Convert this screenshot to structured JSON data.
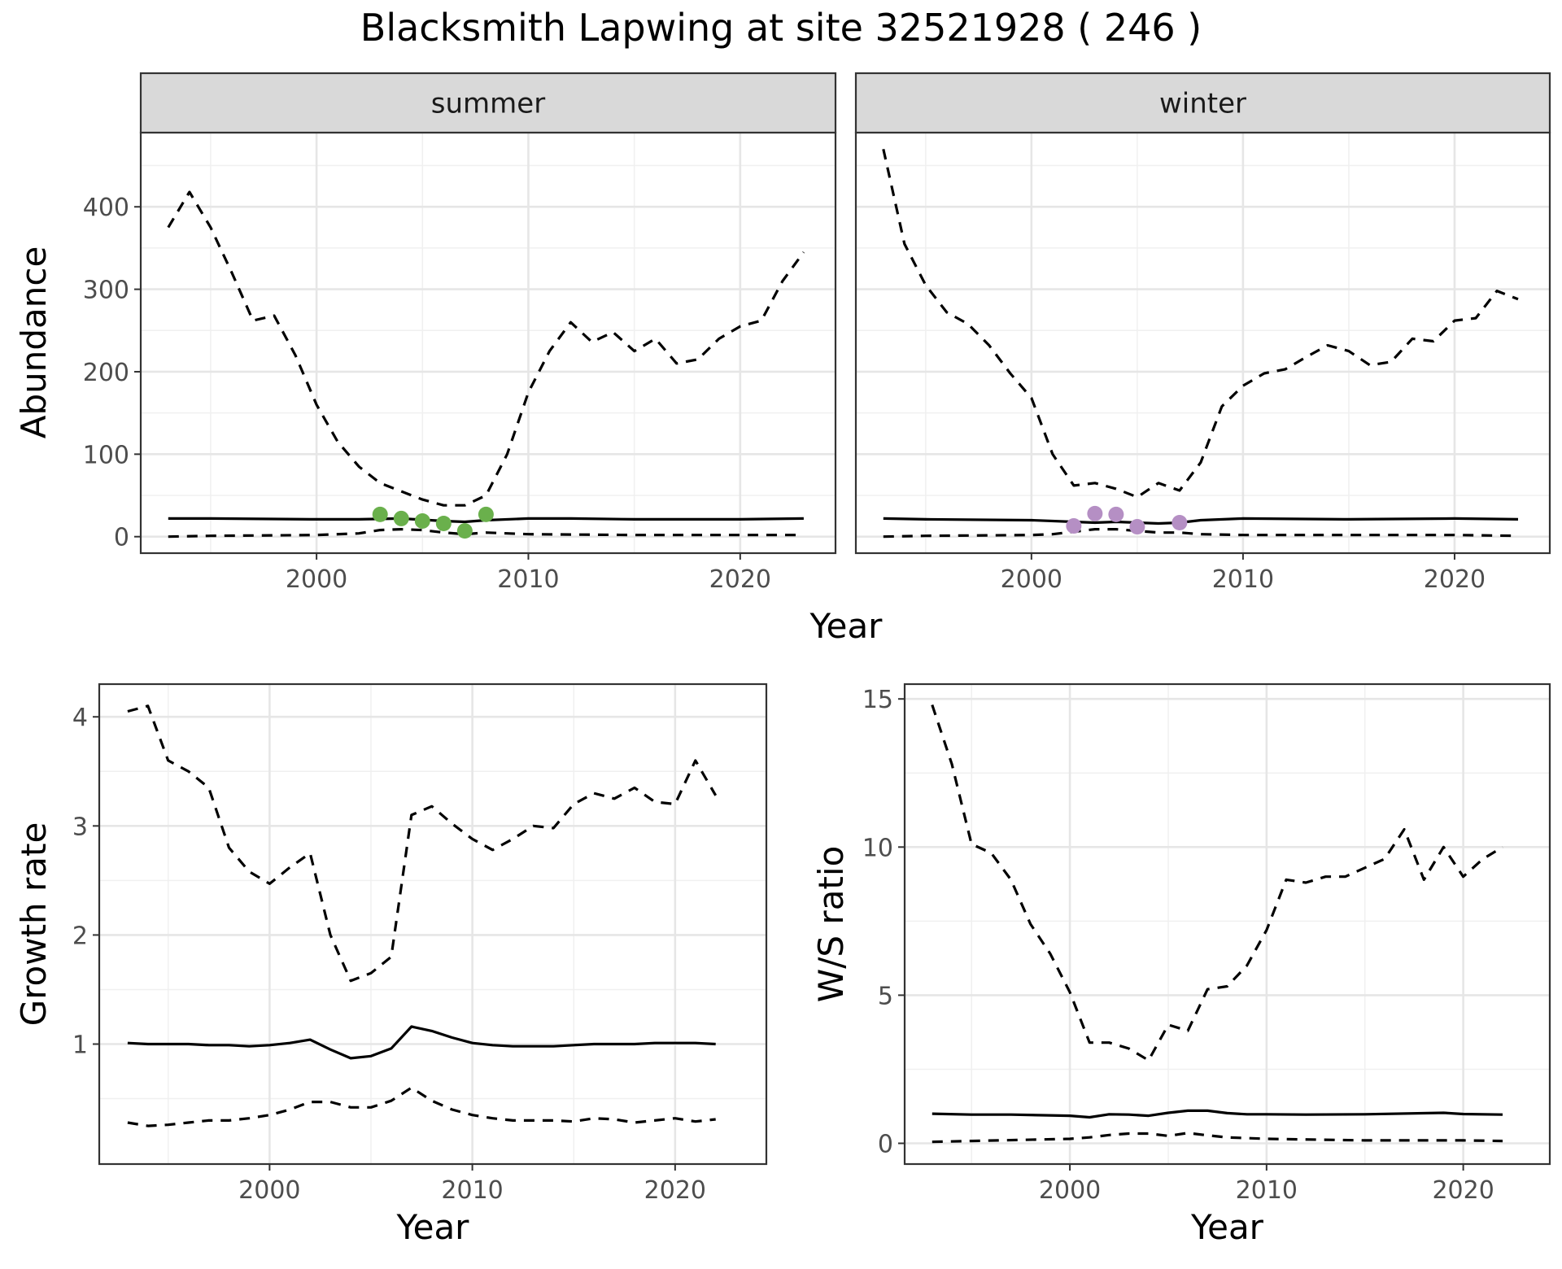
{
  "title": "Blacksmith Lapwing at site 32521928 ( 246 )",
  "chart_data": [
    {
      "type": "line",
      "facet": "summer",
      "xlabel": "Year",
      "ylabel": "Abundance",
      "xlim": [
        1991.7,
        2024.5
      ],
      "ylim": [
        -20,
        490
      ],
      "xticks": [
        2000,
        2010,
        2020
      ],
      "yticks": [
        0,
        100,
        200,
        300,
        400
      ],
      "grid": true,
      "series": [
        {
          "role": "estimate",
          "linestyle": "solid",
          "x": [
            1993,
            1995,
            2000,
            2002,
            2004,
            2006,
            2007,
            2008,
            2010,
            2012,
            2015,
            2020,
            2023
          ],
          "y": [
            22,
            22,
            21,
            21,
            22,
            19,
            18,
            20,
            22,
            22,
            21,
            21,
            22
          ]
        },
        {
          "role": "upper",
          "linestyle": "dashed",
          "x": [
            1993,
            1994,
            1995,
            1996,
            1997,
            1998,
            1999,
            2000,
            2001,
            2002,
            2003,
            2004,
            2005,
            2006,
            2007,
            2008,
            2009,
            2010,
            2011,
            2012,
            2013,
            2014,
            2015,
            2016,
            2017,
            2018,
            2019,
            2020,
            2021,
            2022,
            2023
          ],
          "y": [
            375,
            418,
            375,
            320,
            262,
            268,
            220,
            160,
            115,
            85,
            65,
            55,
            45,
            38,
            38,
            50,
            100,
            175,
            225,
            260,
            236,
            248,
            225,
            240,
            210,
            215,
            240,
            255,
            262,
            310,
            345
          ]
        },
        {
          "role": "lower",
          "linestyle": "dashed",
          "x": [
            1993,
            1995,
            2000,
            2002,
            2003,
            2004,
            2005,
            2006,
            2007,
            2008,
            2010,
            2015,
            2020,
            2023
          ],
          "y": [
            0,
            1,
            2,
            4,
            8,
            9,
            8,
            5,
            3,
            5,
            3,
            2,
            2,
            2
          ]
        },
        {
          "role": "observed",
          "color": "#6ab04c",
          "x": [
            2003,
            2004,
            2005,
            2006,
            2007,
            2008
          ],
          "y": [
            27,
            22,
            19,
            16,
            7,
            27
          ]
        }
      ]
    },
    {
      "type": "line",
      "facet": "winter",
      "xlabel": "Year",
      "ylabel": "",
      "xlim": [
        1991.7,
        2024.5
      ],
      "ylim": [
        -20,
        490
      ],
      "xticks": [
        2000,
        2010,
        2020
      ],
      "yticks": [
        0,
        100,
        200,
        300,
        400
      ],
      "grid": true,
      "series": [
        {
          "role": "estimate",
          "linestyle": "solid",
          "x": [
            1993,
            1995,
            2000,
            2002,
            2003,
            2004,
            2005,
            2006,
            2007,
            2008,
            2010,
            2015,
            2020,
            2023
          ],
          "y": [
            22,
            21,
            20,
            18,
            17,
            18,
            17,
            16,
            17,
            20,
            22,
            21,
            22,
            21
          ]
        },
        {
          "role": "upper",
          "linestyle": "dashed",
          "x": [
            1993,
            1994,
            1995,
            1996,
            1997,
            1998,
            1999,
            2000,
            2001,
            2002,
            2003,
            2004,
            2005,
            2006,
            2007,
            2008,
            2009,
            2010,
            2011,
            2012,
            2013,
            2014,
            2015,
            2016,
            2017,
            2018,
            2019,
            2020,
            2021,
            2022,
            2023
          ],
          "y": [
            470,
            355,
            305,
            272,
            258,
            232,
            198,
            168,
            100,
            62,
            65,
            58,
            48,
            65,
            56,
            90,
            158,
            183,
            198,
            203,
            218,
            232,
            225,
            208,
            212,
            240,
            237,
            262,
            265,
            298,
            288
          ]
        },
        {
          "role": "lower",
          "linestyle": "dashed",
          "x": [
            1993,
            1995,
            2000,
            2001,
            2002,
            2003,
            2004,
            2005,
            2006,
            2007,
            2008,
            2010,
            2015,
            2020,
            2023
          ],
          "y": [
            0,
            1,
            2,
            3,
            6,
            9,
            9,
            7,
            5,
            5,
            3,
            2,
            2,
            2,
            1
          ]
        },
        {
          "role": "observed",
          "color": "#b58fc4",
          "x": [
            2002,
            2003,
            2004,
            2005,
            2007
          ],
          "y": [
            13,
            28,
            27,
            12,
            17
          ]
        }
      ]
    },
    {
      "type": "line",
      "xlabel": "Year",
      "ylabel": "Growth rate",
      "xlim": [
        1991.6,
        2024.5
      ],
      "ylim": [
        -0.1,
        4.3
      ],
      "xticks": [
        2000,
        2010,
        2020
      ],
      "yticks": [
        1,
        2,
        3,
        4
      ],
      "grid": true,
      "series": [
        {
          "role": "estimate",
          "linestyle": "solid",
          "x": [
            1993,
            1994,
            1995,
            1996,
            1997,
            1998,
            1999,
            2000,
            2001,
            2002,
            2003,
            2004,
            2005,
            2006,
            2007,
            2008,
            2009,
            2010,
            2011,
            2012,
            2013,
            2014,
            2015,
            2016,
            2017,
            2018,
            2019,
            2020,
            2021,
            2022
          ],
          "y": [
            1.01,
            1.0,
            1.0,
            1.0,
            0.99,
            0.99,
            0.98,
            0.99,
            1.01,
            1.04,
            0.95,
            0.87,
            0.89,
            0.96,
            1.16,
            1.12,
            1.06,
            1.01,
            0.99,
            0.98,
            0.98,
            0.98,
            0.99,
            1.0,
            1.0,
            1.0,
            1.01,
            1.01,
            1.01,
            1.0
          ]
        },
        {
          "role": "upper",
          "linestyle": "dashed",
          "x": [
            1993,
            1994,
            1995,
            1996,
            1997,
            1998,
            1999,
            2000,
            2001,
            2002,
            2003,
            2004,
            2005,
            2006,
            2007,
            2008,
            2009,
            2010,
            2011,
            2012,
            2013,
            2014,
            2015,
            2016,
            2017,
            2018,
            2019,
            2020,
            2021,
            2022
          ],
          "y": [
            4.05,
            4.1,
            3.6,
            3.5,
            3.35,
            2.8,
            2.58,
            2.47,
            2.62,
            2.75,
            2.0,
            1.58,
            1.65,
            1.8,
            3.1,
            3.18,
            3.02,
            2.88,
            2.78,
            2.88,
            3.0,
            2.98,
            3.2,
            3.3,
            3.25,
            3.35,
            3.22,
            3.2,
            3.6,
            3.28
          ]
        },
        {
          "role": "lower",
          "linestyle": "dashed",
          "x": [
            1993,
            1994,
            1995,
            1996,
            1997,
            1998,
            1999,
            2000,
            2001,
            2002,
            2003,
            2004,
            2005,
            2006,
            2007,
            2008,
            2009,
            2010,
            2011,
            2012,
            2013,
            2014,
            2015,
            2016,
            2017,
            2018,
            2019,
            2020,
            2021,
            2022
          ],
          "y": [
            0.28,
            0.25,
            0.26,
            0.28,
            0.3,
            0.3,
            0.32,
            0.35,
            0.4,
            0.47,
            0.47,
            0.42,
            0.42,
            0.48,
            0.6,
            0.48,
            0.4,
            0.35,
            0.32,
            0.3,
            0.3,
            0.3,
            0.29,
            0.32,
            0.31,
            0.28,
            0.3,
            0.32,
            0.29,
            0.31
          ]
        }
      ]
    },
    {
      "type": "line",
      "xlabel": "Year",
      "ylabel": "W/S ratio",
      "xlim": [
        1991.6,
        2024.4
      ],
      "ylim": [
        -0.7,
        15.5
      ],
      "xticks": [
        2000,
        2010,
        2020
      ],
      "yticks": [
        0,
        5,
        10,
        15
      ],
      "grid": true,
      "series": [
        {
          "role": "estimate",
          "linestyle": "solid",
          "x": [
            1993,
            1995,
            1997,
            2000,
            2001,
            2002,
            2003,
            2004,
            2005,
            2006,
            2007,
            2008,
            2009,
            2010,
            2012,
            2015,
            2019,
            2020,
            2022
          ],
          "y": [
            1.0,
            0.97,
            0.97,
            0.93,
            0.88,
            0.98,
            0.97,
            0.93,
            1.03,
            1.1,
            1.1,
            1.02,
            0.98,
            0.98,
            0.97,
            0.98,
            1.03,
            0.99,
            0.97
          ]
        },
        {
          "role": "upper",
          "linestyle": "dashed",
          "x": [
            1993,
            1994,
            1995,
            1996,
            1997,
            1998,
            1999,
            2000,
            2001,
            2002,
            2003,
            2004,
            2005,
            2006,
            2007,
            2008,
            2009,
            2010,
            2011,
            2012,
            2013,
            2014,
            2015,
            2016,
            2017,
            2018,
            2019,
            2020,
            2021,
            2022
          ],
          "y": [
            14.8,
            12.8,
            10.1,
            9.8,
            8.9,
            7.4,
            6.4,
            5.1,
            3.4,
            3.4,
            3.2,
            2.8,
            4.0,
            3.8,
            5.2,
            5.3,
            6.0,
            7.2,
            8.9,
            8.8,
            9.0,
            9.0,
            9.3,
            9.6,
            10.6,
            8.9,
            10.0,
            9.0,
            9.6,
            10.0
          ]
        },
        {
          "role": "lower",
          "linestyle": "dashed",
          "x": [
            1993,
            1995,
            2000,
            2001,
            2002,
            2003,
            2004,
            2005,
            2006,
            2007,
            2008,
            2010,
            2015,
            2020,
            2022
          ],
          "y": [
            0.05,
            0.08,
            0.15,
            0.2,
            0.28,
            0.33,
            0.33,
            0.25,
            0.35,
            0.27,
            0.2,
            0.15,
            0.1,
            0.1,
            0.08
          ]
        }
      ]
    }
  ]
}
